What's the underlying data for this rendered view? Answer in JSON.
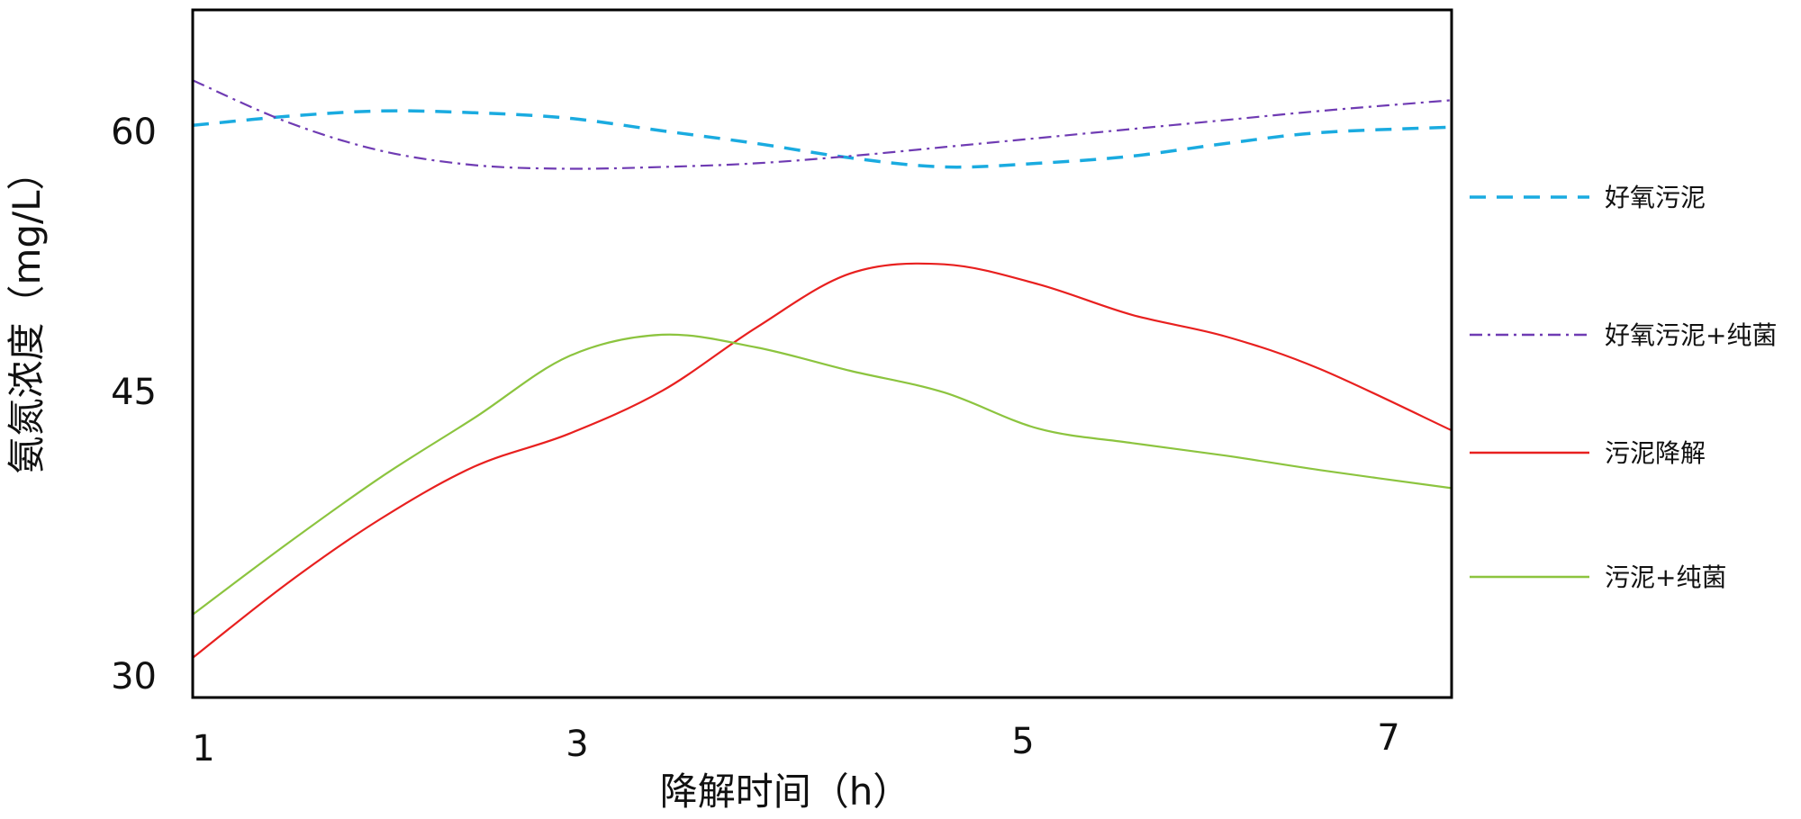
{
  "chart_data": {
    "type": "line",
    "xlabel": "降解时间（h）",
    "ylabel": "氨氮浓度（mg/L）",
    "xticks": [
      "1",
      "3",
      "5",
      "7"
    ],
    "yticks": [
      "60",
      "45",
      "30"
    ],
    "xlim": [
      1,
      7.7
    ],
    "ylim": [
      28.3,
      66.4
    ],
    "grid": false,
    "legend_position": "right",
    "series": [
      {
        "name": "好氧污泥",
        "color": "#1aabe0",
        "dash": "18,12",
        "points": [
          [
            1,
            60
          ],
          [
            1.5,
            60.5
          ],
          [
            2,
            60.8
          ],
          [
            2.5,
            60.7
          ],
          [
            3,
            60.4
          ],
          [
            3.5,
            59.7
          ],
          [
            4,
            59
          ],
          [
            4.5,
            58.2
          ],
          [
            5,
            57.7
          ],
          [
            5.5,
            57.9
          ],
          [
            6,
            58.3
          ],
          [
            6.5,
            59
          ],
          [
            7,
            59.6
          ],
          [
            7.7,
            59.9
          ]
        ]
      },
      {
        "name": "好氧污泥+纯菌",
        "color": "#6f3bb3",
        "dash": "14,6,3,6",
        "points": [
          [
            1,
            62.5
          ],
          [
            1.5,
            60.2
          ],
          [
            2,
            58.6
          ],
          [
            2.5,
            57.8
          ],
          [
            3,
            57.6
          ],
          [
            3.5,
            57.7
          ],
          [
            4,
            57.9
          ],
          [
            4.5,
            58.3
          ],
          [
            5,
            58.8
          ],
          [
            5.5,
            59.3
          ],
          [
            6,
            59.8
          ],
          [
            6.5,
            60.3
          ],
          [
            7,
            60.8
          ],
          [
            7.7,
            61.4
          ]
        ]
      },
      {
        "name": "污泥降解",
        "color": "#e8201f",
        "dash": "",
        "points": [
          [
            1,
            30.5
          ],
          [
            1.5,
            34.6
          ],
          [
            2,
            38.2
          ],
          [
            2.5,
            41.1
          ],
          [
            3,
            42.9
          ],
          [
            3.5,
            45.3
          ],
          [
            4,
            48.8
          ],
          [
            4.5,
            51.8
          ],
          [
            5,
            52.3
          ],
          [
            5.5,
            51.2
          ],
          [
            6,
            49.5
          ],
          [
            6.5,
            48.3
          ],
          [
            7,
            46.5
          ],
          [
            7.7,
            43.1
          ]
        ]
      },
      {
        "name": "污泥+纯菌",
        "color": "#8cc43f",
        "dash": "",
        "points": [
          [
            1,
            32.9
          ],
          [
            1.5,
            36.8
          ],
          [
            2,
            40.5
          ],
          [
            2.5,
            43.8
          ],
          [
            3,
            47.2
          ],
          [
            3.5,
            48.4
          ],
          [
            4,
            47.7
          ],
          [
            4.5,
            46.4
          ],
          [
            5,
            45.2
          ],
          [
            5.5,
            43.2
          ],
          [
            6,
            42.4
          ],
          [
            6.5,
            41.7
          ],
          [
            7,
            40.9
          ],
          [
            7.7,
            39.9
          ]
        ]
      }
    ]
  }
}
